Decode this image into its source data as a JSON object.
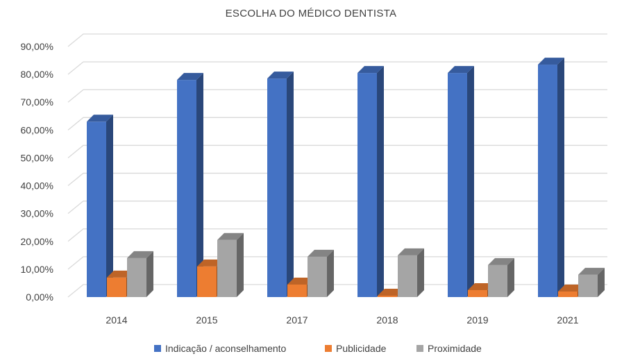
{
  "chart_data": {
    "type": "bar",
    "title": "ESCOLHA DO MÉDICO DENTISTA",
    "categories": [
      "2014",
      "2015",
      "2017",
      "2018",
      "2019",
      "2021"
    ],
    "series": [
      {
        "name": "Indicação / aconselhamento",
        "color": "#4472C4",
        "values": [
          63.0,
          78.0,
          78.5,
          80.5,
          80.5,
          83.5
        ]
      },
      {
        "name": "Publicidade",
        "color": "#ED7D31",
        "values": [
          7.0,
          11.0,
          4.5,
          0.5,
          2.5,
          2.0
        ]
      },
      {
        "name": "Proximidade",
        "color": "#A5A5A5",
        "values": [
          14.0,
          20.5,
          14.5,
          15.0,
          11.5,
          8.0
        ]
      }
    ],
    "ylim": [
      0,
      90
    ],
    "yticks": [
      "0,00%",
      "10,00%",
      "20,00%",
      "30,00%",
      "40,00%",
      "50,00%",
      "60,00%",
      "70,00%",
      "80,00%",
      "90,00%"
    ],
    "xlabel": "",
    "ylabel": "",
    "grid": true,
    "legend": "bottom"
  }
}
